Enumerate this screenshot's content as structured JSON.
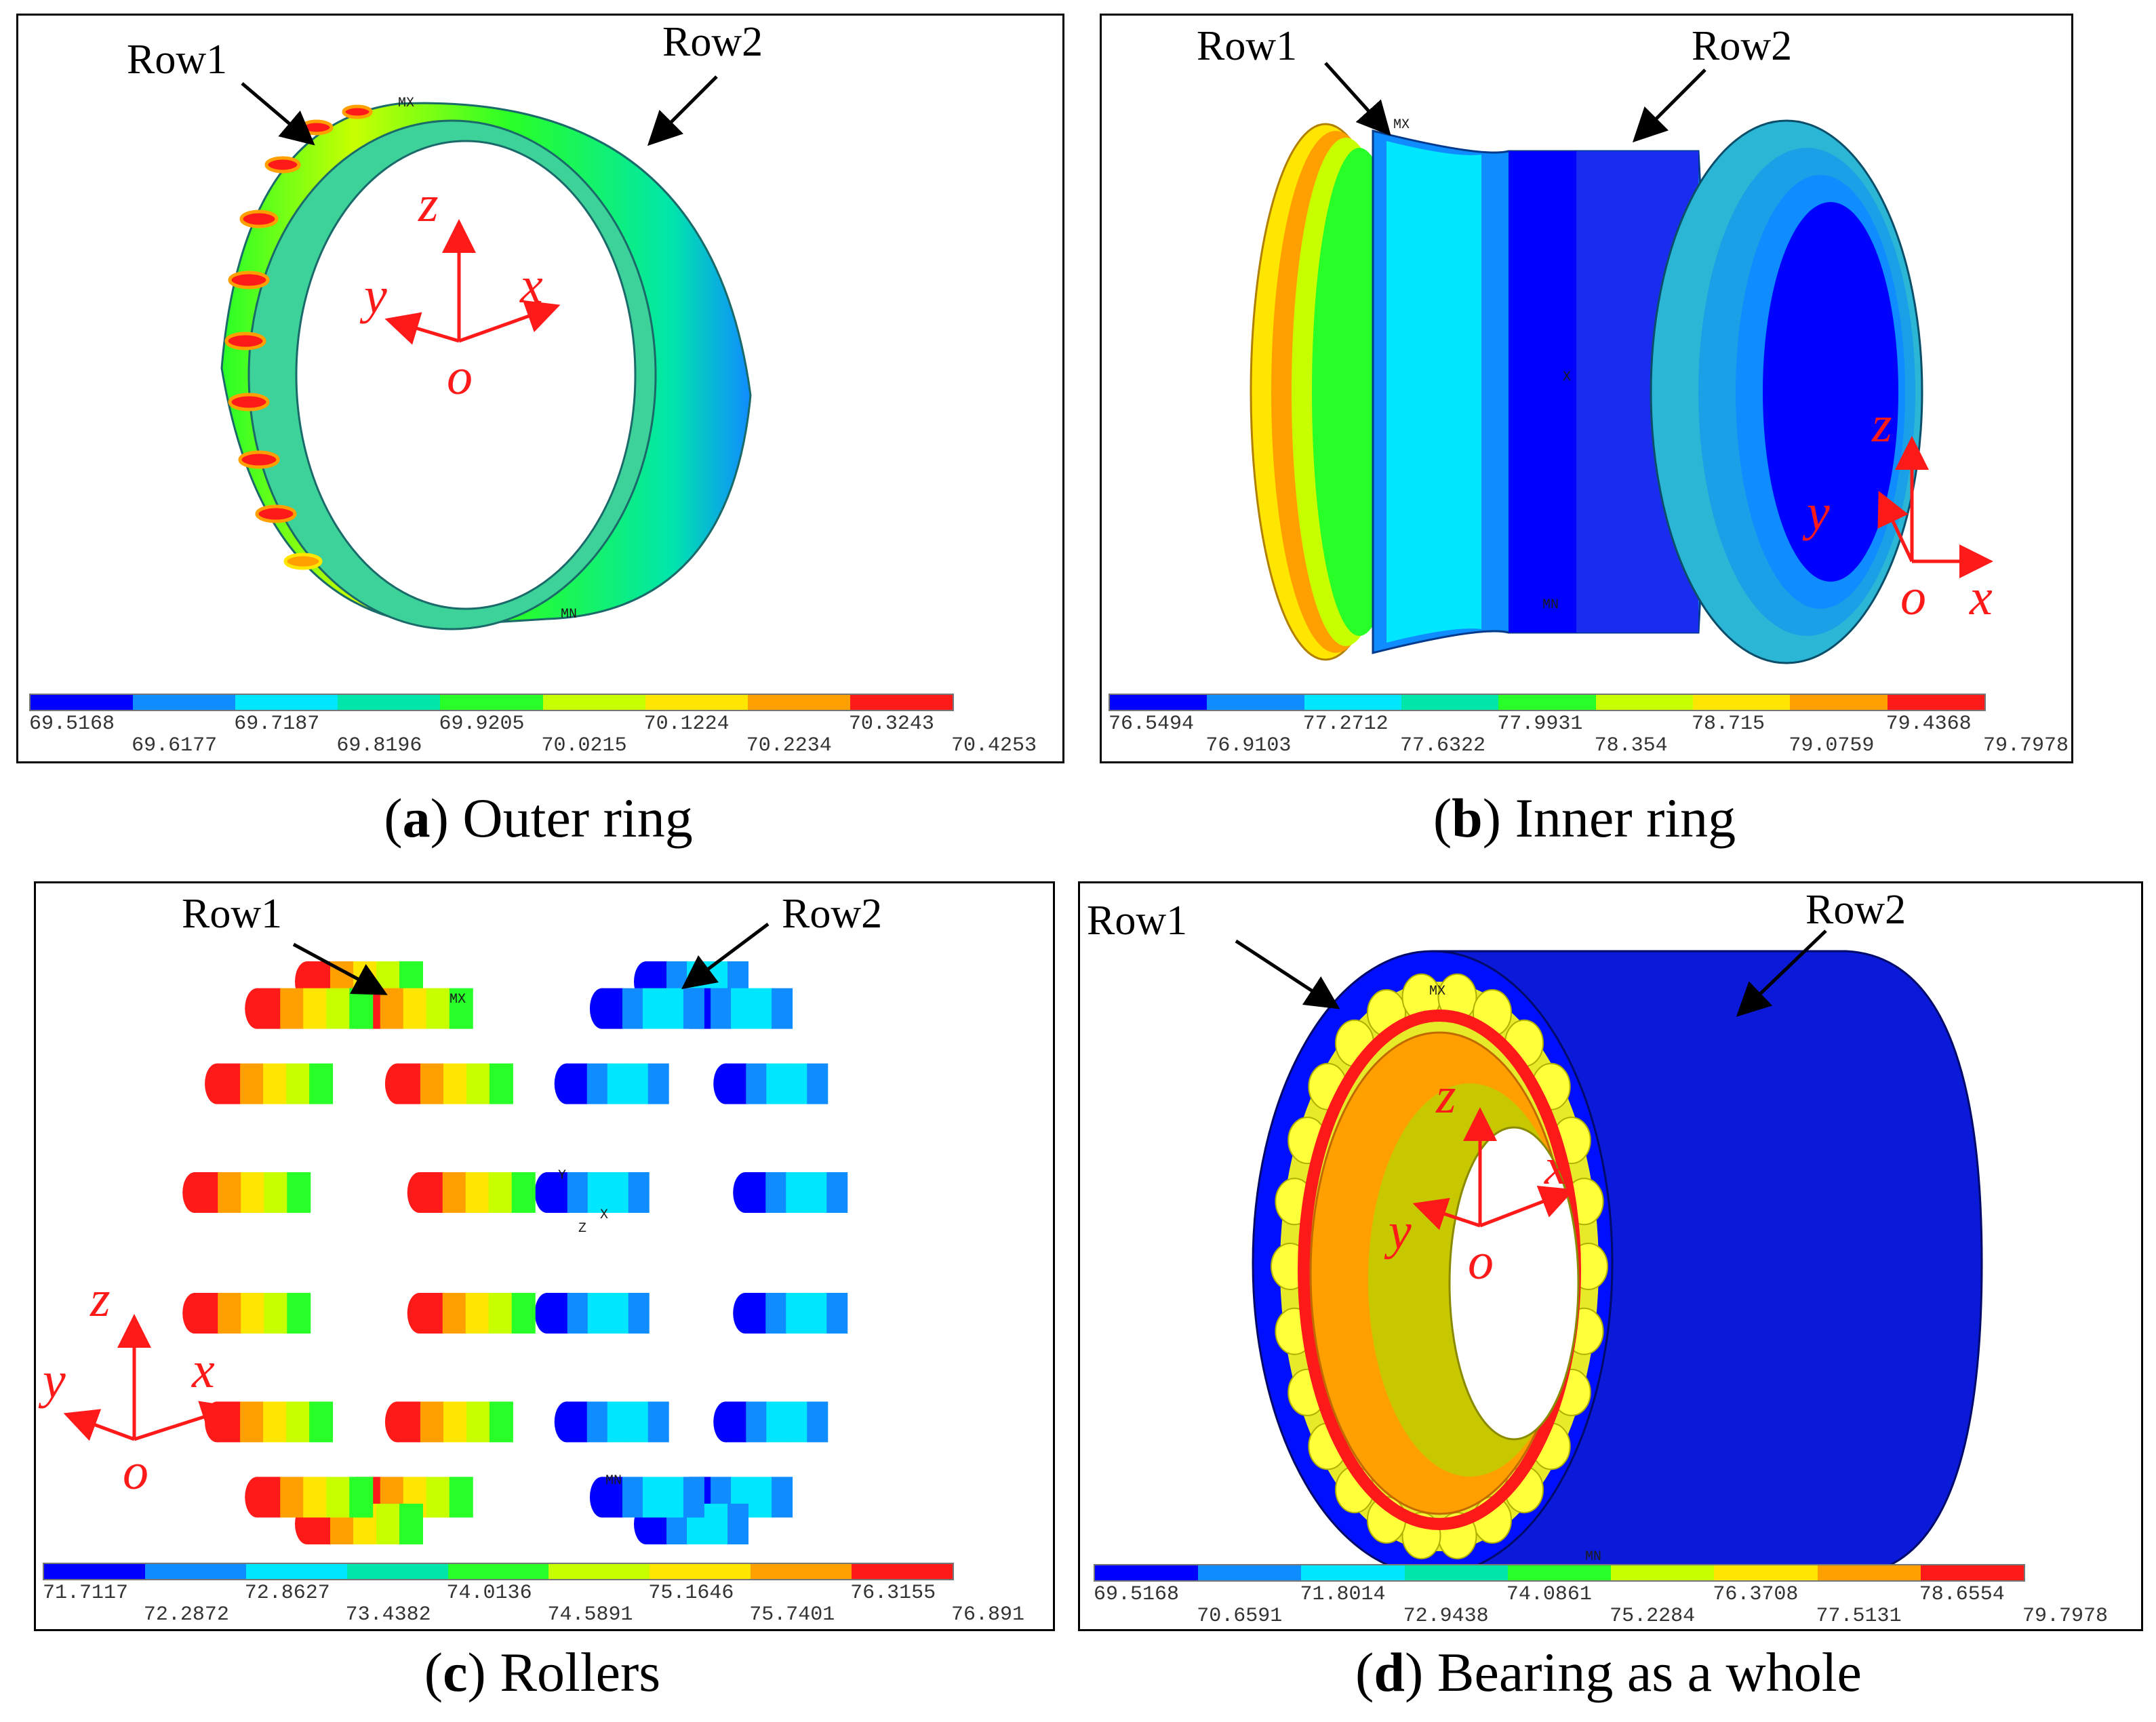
{
  "colors": {
    "scale": [
      "#0000ff",
      "#0f8cff",
      "#00e6ff",
      "#00e6aa",
      "#28ff28",
      "#c8ff00",
      "#ffe600",
      "#ffa000",
      "#ff1a1a"
    ],
    "axis": "#ff1a1a"
  },
  "panels": [
    {
      "id": "a",
      "caption_letter": "a",
      "caption_text": "Outer ring",
      "row1": "Row1",
      "row2": "Row2",
      "markers": [
        "MX",
        "MN"
      ],
      "axes": {
        "z": "z",
        "y": "y",
        "x": "x",
        "o": "o"
      },
      "scale_top": [
        "69.5168",
        "69.7187",
        "69.9205",
        "70.1224",
        "70.3243"
      ],
      "scale_bottom": [
        "69.6177",
        "69.8196",
        "70.0215",
        "70.2234",
        "70.4253"
      ]
    },
    {
      "id": "b",
      "caption_letter": "b",
      "caption_text": "Inner ring",
      "row1": "Row1",
      "row2": "Row2",
      "markers": [
        "MX",
        "MN",
        "X"
      ],
      "axes": {
        "z": "z",
        "y": "y",
        "x": "x",
        "o": "o"
      },
      "scale_top": [
        "76.5494",
        "77.2712",
        "77.9931",
        "78.715",
        "79.4368"
      ],
      "scale_bottom": [
        "76.9103",
        "77.6322",
        "78.354",
        "79.0759",
        "79.7978"
      ]
    },
    {
      "id": "c",
      "caption_letter": "c",
      "caption_text": "Rollers",
      "row1": "Row1",
      "row2": "Row2",
      "markers": [
        "MX",
        "MN",
        "Y",
        "Z",
        "X"
      ],
      "axes": {
        "z": "z",
        "y": "y",
        "x": "x",
        "o": "o"
      },
      "scale_top": [
        "71.7117",
        "72.8627",
        "74.0136",
        "75.1646",
        "76.3155"
      ],
      "scale_bottom": [
        "72.2872",
        "73.4382",
        "74.5891",
        "75.7401",
        "76.891"
      ]
    },
    {
      "id": "d",
      "caption_letter": "d",
      "caption_text": "Bearing as a whole",
      "row1": "Row1",
      "row2": "Row2",
      "markers": [
        "MX",
        "MN"
      ],
      "axes": {
        "z": "z",
        "y": "y",
        "x": "x",
        "o": "o"
      },
      "scale_top": [
        "69.5168",
        "71.8014",
        "74.0861",
        "76.3708",
        "78.6554"
      ],
      "scale_bottom": [
        "70.6591",
        "72.9438",
        "75.2284",
        "77.5131",
        "79.7978"
      ]
    }
  ]
}
